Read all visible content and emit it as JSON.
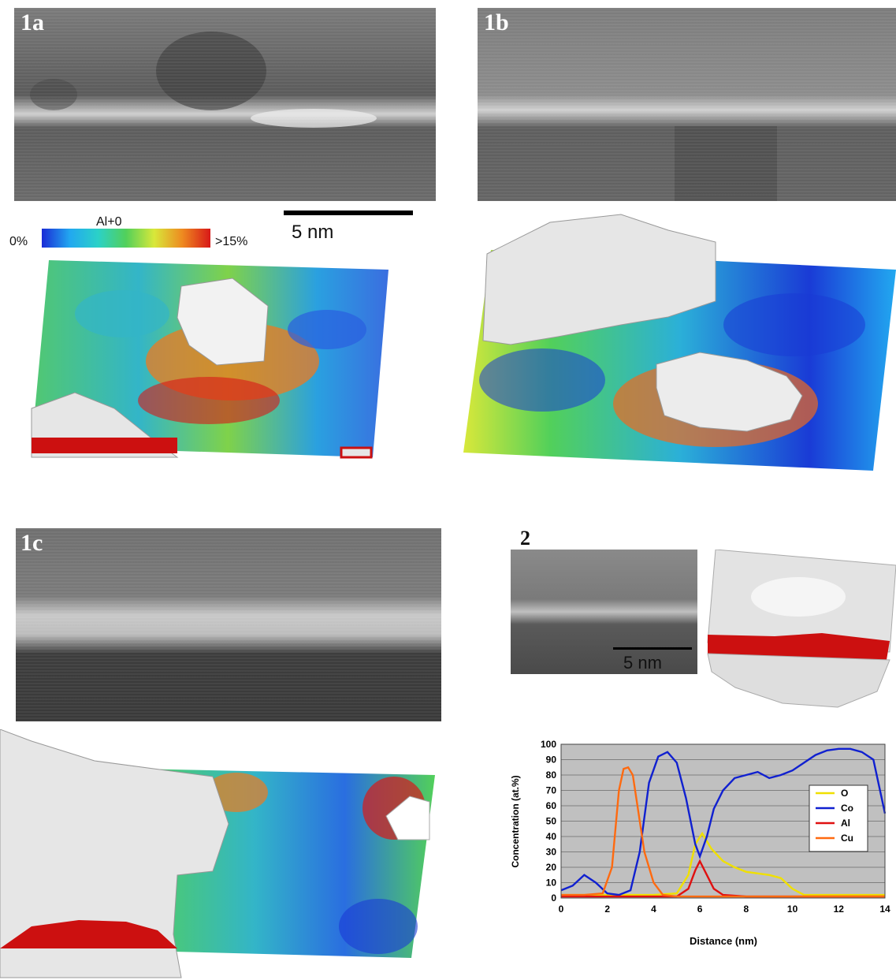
{
  "panels": {
    "p1a": "1a",
    "p1b": "1b",
    "p1c": "1c",
    "p2": "2"
  },
  "scalebar_main": "5 nm",
  "scalebar_2": "5 nm",
  "colorbar": {
    "title": "Al+0",
    "min_label": "0%",
    "max_label": ">15%",
    "colors": [
      "#1a2bd6",
      "#22a8f0",
      "#2bd1c8",
      "#52d05a",
      "#d8e83a",
      "#ee8a20",
      "#d81818"
    ]
  },
  "chart_data": {
    "type": "line",
    "xlabel": "Distance (nm)",
    "ylabel": "Concentration (at.%)",
    "xlim": [
      0,
      14
    ],
    "ylim": [
      0,
      100
    ],
    "xticks": [
      0,
      2,
      4,
      6,
      8,
      10,
      12,
      14
    ],
    "yticks": [
      0,
      10,
      20,
      30,
      40,
      50,
      60,
      70,
      80,
      90,
      100
    ],
    "grid": true,
    "legend_position": "right",
    "series": [
      {
        "name": "O",
        "color": "#f0e000",
        "x": [
          0,
          1,
          2,
          3,
          4,
          5,
          5.5,
          5.8,
          6.1,
          6.5,
          7,
          7.5,
          8,
          8.5,
          9,
          9.5,
          10,
          10.5,
          11,
          12,
          13,
          14
        ],
        "y": [
          2,
          2,
          2,
          2,
          2,
          3,
          15,
          35,
          42,
          32,
          24,
          20,
          17,
          16,
          15,
          13,
          6,
          2,
          2,
          2,
          2,
          2
        ]
      },
      {
        "name": "Co",
        "color": "#1020d0",
        "x": [
          0,
          0.5,
          1,
          1.5,
          2,
          2.5,
          3,
          3.4,
          3.8,
          4.2,
          4.6,
          5,
          5.4,
          5.8,
          6,
          6.3,
          6.6,
          7,
          7.5,
          8,
          8.5,
          9,
          9.5,
          10,
          10.5,
          11,
          11.5,
          12,
          12.5,
          13,
          13.5,
          14
        ],
        "y": [
          5,
          8,
          15,
          10,
          3,
          2,
          5,
          30,
          75,
          92,
          95,
          88,
          65,
          35,
          27,
          40,
          58,
          70,
          78,
          80,
          82,
          78,
          80,
          83,
          88,
          93,
          96,
          97,
          97,
          95,
          90,
          55
        ]
      },
      {
        "name": "Al",
        "color": "#e01010",
        "x": [
          0,
          1,
          2,
          3,
          4,
          5,
          5.5,
          5.8,
          6,
          6.3,
          6.6,
          7,
          8,
          9,
          10,
          11,
          12,
          13,
          14
        ],
        "y": [
          1,
          1,
          1,
          1,
          1,
          1,
          6,
          18,
          24,
          15,
          6,
          2,
          1,
          1,
          1,
          1,
          1,
          1,
          1
        ]
      },
      {
        "name": "Cu",
        "color": "#ff6a10",
        "x": [
          0,
          1,
          1.8,
          2.2,
          2.5,
          2.7,
          2.9,
          3.1,
          3.3,
          3.6,
          4,
          4.4,
          5,
          6,
          8,
          10,
          12,
          14
        ],
        "y": [
          2,
          2,
          3,
          20,
          70,
          84,
          85,
          80,
          60,
          30,
          10,
          2,
          1,
          1,
          1,
          1,
          1,
          1
        ]
      }
    ]
  }
}
